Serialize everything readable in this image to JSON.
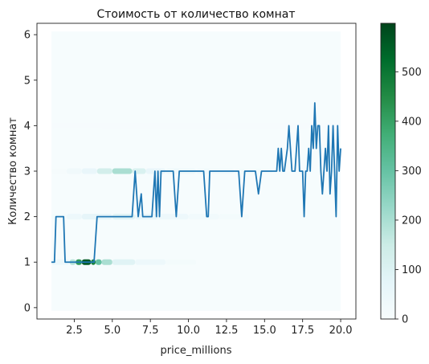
{
  "chart_data": {
    "type": "line",
    "title": "Стоимость от количество комнат",
    "xlabel": "price_millions",
    "ylabel": "Количество комнат",
    "xlim": [
      0.05,
      21.0
    ],
    "ylim": [
      -0.25,
      6.25
    ],
    "xticks": [
      "2.5",
      "5.0",
      "7.5",
      "10.0",
      "12.5",
      "15.0",
      "17.5",
      "20.0"
    ],
    "yticks": [
      "0",
      "1",
      "2",
      "3",
      "4",
      "5",
      "6"
    ],
    "grid": false,
    "legend": "none",
    "line_color": "#1f77b4",
    "series": [
      {
        "x": [
          1.0,
          1.2,
          1.3,
          1.4,
          1.8,
          1.9,
          2.1,
          2.5,
          3.0,
          3.5,
          3.8,
          3.9,
          4.0,
          4.5,
          5.0,
          5.5,
          6.0,
          6.3,
          6.5,
          6.7,
          6.9,
          7.0,
          7.2,
          7.4,
          7.6,
          7.8,
          7.9,
          8.0,
          8.1,
          8.2,
          8.3,
          8.5,
          9.0,
          9.2,
          9.4,
          9.6,
          9.8,
          10.0,
          10.5,
          11.0,
          11.2,
          11.3,
          11.4,
          11.6,
          11.8,
          12.0,
          12.5,
          13.0,
          13.3,
          13.5,
          13.7,
          14.0,
          14.2,
          14.4,
          14.6,
          14.8,
          15.0,
          15.4,
          15.6,
          15.8,
          15.9,
          16.0,
          16.1,
          16.2,
          16.3,
          16.5,
          16.6,
          16.8,
          17.0,
          17.1,
          17.2,
          17.3,
          17.5,
          17.6,
          17.7,
          17.8,
          17.9,
          18.0,
          18.1,
          18.2,
          18.3,
          18.4,
          18.5,
          18.6,
          18.7,
          18.8,
          18.9,
          19.0,
          19.1,
          19.2,
          19.3,
          19.4,
          19.5,
          19.6,
          19.7,
          19.8,
          19.9,
          20.0
        ],
        "y": [
          1.0,
          1.0,
          2.0,
          2.0,
          2.0,
          1.0,
          1.0,
          1.0,
          1.0,
          1.0,
          1.0,
          1.5,
          2.0,
          2.0,
          2.0,
          2.0,
          2.0,
          2.0,
          3.0,
          2.0,
          2.5,
          2.0,
          2.0,
          2.0,
          2.0,
          3.0,
          2.0,
          3.0,
          2.0,
          3.0,
          3.0,
          3.0,
          3.0,
          2.0,
          3.0,
          3.0,
          3.0,
          3.0,
          3.0,
          3.0,
          2.0,
          2.0,
          3.0,
          3.0,
          3.0,
          3.0,
          3.0,
          3.0,
          3.0,
          2.0,
          3.0,
          3.0,
          3.0,
          3.0,
          2.5,
          3.0,
          3.0,
          3.0,
          3.0,
          3.0,
          3.5,
          3.0,
          3.5,
          3.0,
          3.0,
          3.5,
          4.0,
          3.0,
          3.0,
          3.5,
          4.0,
          3.0,
          3.0,
          2.0,
          3.0,
          3.0,
          3.5,
          3.0,
          4.0,
          3.5,
          4.5,
          3.5,
          4.0,
          4.0,
          3.0,
          2.5,
          3.0,
          3.5,
          3.0,
          4.0,
          2.5,
          3.0,
          4.0,
          3.0,
          2.0,
          4.0,
          3.0,
          3.5
        ]
      }
    ],
    "hexbin": {
      "extent_x": [
        1.0,
        20.0
      ],
      "extent_y": [
        0.0,
        6.0
      ],
      "background_color": "#f6fcfd",
      "bands": [
        {
          "y": 1,
          "segments": [
            [
              1.0,
              2.2,
              40
            ],
            [
              2.2,
              2.6,
              180
            ],
            [
              2.6,
              3.0,
              420
            ],
            [
              3.0,
              3.6,
              560
            ],
            [
              3.6,
              3.9,
              470
            ],
            [
              3.9,
              4.3,
              300
            ],
            [
              4.3,
              5.0,
              200
            ],
            [
              5.0,
              6.5,
              90
            ],
            [
              6.5,
              8.5,
              40
            ],
            [
              8.5,
              10.5,
              15
            ]
          ]
        },
        {
          "y": 2,
          "segments": [
            [
              1.0,
              2.0,
              15
            ],
            [
              2.0,
              3.0,
              40
            ],
            [
              3.0,
              5.0,
              70
            ],
            [
              5.0,
              6.5,
              90
            ],
            [
              6.5,
              8.0,
              60
            ],
            [
              8.0,
              10.0,
              40
            ],
            [
              10.0,
              12.0,
              25
            ],
            [
              12.0,
              14.0,
              15
            ]
          ]
        },
        {
          "y": 3,
          "segments": [
            [
              1.0,
              2.0,
              10
            ],
            [
              2.0,
              3.0,
              30
            ],
            [
              3.0,
              4.0,
              60
            ],
            [
              4.0,
              5.0,
              130
            ],
            [
              5.0,
              6.3,
              200
            ],
            [
              6.3,
              7.2,
              110
            ],
            [
              7.2,
              8.5,
              60
            ],
            [
              8.5,
              10.5,
              35
            ],
            [
              10.5,
              13.0,
              25
            ],
            [
              13.0,
              15.5,
              15
            ]
          ]
        },
        {
          "y": 4,
          "segments": [
            [
              1.0,
              20.0,
              6
            ]
          ]
        },
        {
          "y": 5,
          "segments": [
            [
              1.0,
              20.0,
              3
            ]
          ]
        }
      ]
    },
    "colorbar": {
      "min": 0,
      "max": 598,
      "ticks": [
        "0",
        "100",
        "200",
        "300",
        "400",
        "500"
      ],
      "colormap": [
        "#f7fcfd",
        "#e5f5f9",
        "#ccece6",
        "#99d8c9",
        "#66c2a4",
        "#41ae76",
        "#238b45",
        "#006d2c",
        "#00441b"
      ]
    }
  }
}
